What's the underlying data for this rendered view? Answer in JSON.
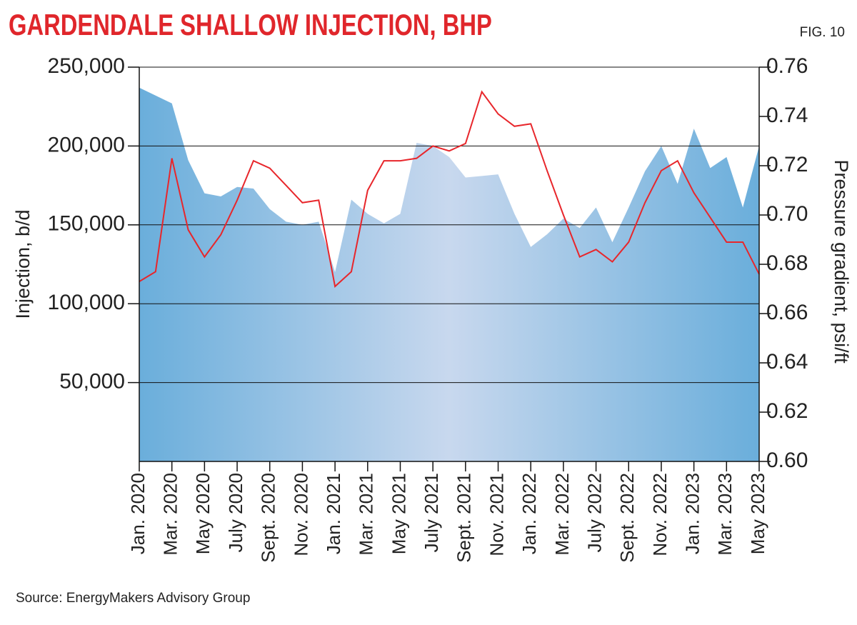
{
  "chart_data": {
    "type": "combo",
    "title": "GARDENDALE SHALLOW INJECTION, BHP",
    "figure_label": "FIG. 10",
    "source": "Source: EnergyMakers Advisory Group",
    "y_label": "Injection, b/d",
    "y2_label": "Pressure gradient, psi/ft",
    "categories": [
      "Jan. 2020",
      null,
      "Mar. 2020",
      null,
      "May 2020",
      null,
      "July 2020",
      null,
      "Sept. 2020",
      null,
      "Nov. 2020",
      null,
      "Jan. 2021",
      null,
      "Mar. 2021",
      null,
      "May 2021",
      null,
      "July 2021",
      null,
      "Sept. 2021",
      null,
      "Nov. 2021",
      null,
      "Jan. 2022",
      null,
      "Mar. 2022",
      null,
      "July 2022",
      null,
      "Sept. 2022",
      null,
      "Nov. 2022",
      null,
      "Jan. 2023",
      null,
      "Mar. 2023",
      null,
      "May 2023"
    ],
    "series": [
      {
        "name": "Injection",
        "type": "area",
        "axis": "y",
        "color": "#6aaedb",
        "color_center": "#c8d8ee",
        "values": [
          237000,
          232000,
          227000,
          191000,
          170000,
          168000,
          174000,
          173000,
          160000,
          152000,
          150000,
          152000,
          120000,
          166000,
          157000,
          151000,
          157000,
          202000,
          200000,
          193000,
          180000,
          181000,
          182000,
          157000,
          136000,
          144000,
          154000,
          148000,
          161000,
          139000,
          161000,
          184000,
          200000,
          176000,
          211000,
          186000,
          193000,
          161000,
          200000
        ]
      },
      {
        "name": "Pressure gradient",
        "type": "line",
        "axis": "y2",
        "color": "#e8262b",
        "values": [
          0.673,
          0.677,
          0.723,
          0.694,
          0.683,
          0.692,
          0.706,
          0.722,
          0.719,
          0.712,
          0.705,
          0.706,
          0.671,
          0.677,
          0.71,
          0.722,
          0.722,
          0.723,
          0.728,
          0.726,
          0.729,
          0.75,
          0.741,
          0.736,
          0.737,
          0.718,
          0.7,
          0.683,
          0.686,
          0.681,
          0.689,
          0.705,
          0.718,
          0.722,
          0.709,
          0.699,
          0.689,
          0.689,
          0.676
        ]
      }
    ],
    "ylim": [
      0,
      250000
    ],
    "yticks": [
      {
        "value": 50000,
        "label": "50,000"
      },
      {
        "value": 100000,
        "label": "100,000"
      },
      {
        "value": 150000,
        "label": "150,000"
      },
      {
        "value": 200000,
        "label": "200,000"
      },
      {
        "value": 250000,
        "label": "250,000"
      }
    ],
    "y2lim": [
      0.6,
      0.76
    ],
    "y2ticks": [
      {
        "value": 0.6,
        "label": "0.60"
      },
      0.62,
      0.64,
      0.66,
      0.68,
      {
        "value": 0.7,
        "label": "0.70"
      },
      0.72,
      0.74,
      0.76
    ],
    "grid": true
  }
}
